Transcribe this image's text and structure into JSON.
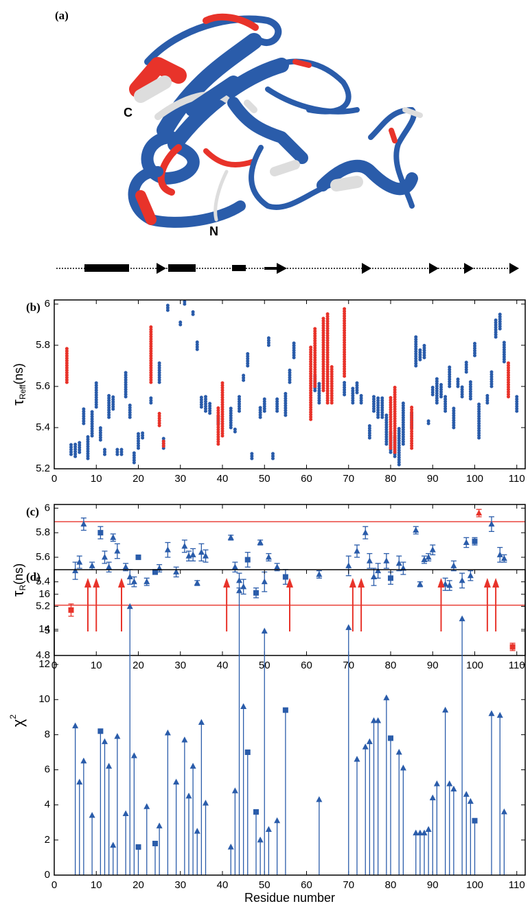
{
  "figure": {
    "panel_label": "(a)",
    "c_label": "C",
    "n_label": "N"
  },
  "chart_data": [
    {
      "type": "range",
      "panel_label": "(b)",
      "y_label": {
        "symbol": "τ",
        "subscript": "Reff",
        "unit": "(ns)"
      },
      "xlim": [
        0,
        112
      ],
      "ylim": [
        5.2,
        6.02
      ],
      "xticks": [
        0,
        10,
        20,
        30,
        40,
        50,
        60,
        70,
        80,
        90,
        100,
        110
      ],
      "yticks": [
        5.2,
        5.4,
        5.6,
        5.8,
        6
      ],
      "series": [
        {
          "color": "#2a5caa",
          "x": [
            4,
            5,
            6,
            7,
            8,
            9,
            10,
            11,
            12,
            13,
            14,
            15,
            16,
            17,
            18,
            19,
            20,
            21,
            23,
            25,
            26,
            27,
            30,
            31,
            33,
            34,
            35,
            36,
            37,
            39,
            42,
            43,
            44,
            45,
            46,
            47,
            49,
            50,
            51,
            52,
            53,
            55,
            56,
            57,
            62,
            63,
            69,
            71,
            72,
            73,
            75,
            76,
            77,
            78,
            79,
            80,
            81,
            82,
            83,
            85,
            86,
            87,
            88,
            89,
            90,
            91,
            92,
            93,
            94,
            95,
            96,
            97,
            98,
            99,
            100,
            101,
            103,
            104,
            105,
            106,
            107,
            110
          ],
          "low": [
            5.27,
            5.26,
            5.28,
            5.42,
            5.25,
            5.36,
            5.5,
            5.34,
            5.27,
            5.45,
            5.49,
            5.27,
            5.27,
            5.55,
            5.45,
            5.23,
            5.3,
            5.35,
            5.52,
            5.62,
            5.3,
            5.97,
            5.9,
            6.0,
            5.95,
            5.78,
            5.5,
            5.48,
            5.47,
            5.42,
            5.4,
            5.38,
            5.48,
            5.63,
            5.7,
            5.25,
            5.45,
            5.48,
            5.8,
            5.25,
            5.48,
            5.46,
            5.62,
            5.74,
            5.58,
            5.52,
            5.56,
            5.52,
            5.57,
            5.52,
            5.35,
            5.48,
            5.45,
            5.45,
            5.32,
            5.28,
            5.26,
            5.22,
            5.32,
            5.4,
            5.7,
            5.73,
            5.74,
            5.42,
            5.56,
            5.52,
            5.55,
            5.48,
            5.6,
            5.4,
            5.6,
            5.55,
            5.67,
            5.54,
            5.75,
            5.35,
            5.52,
            5.6,
            5.84,
            5.88,
            5.72,
            5.48
          ],
          "high": [
            5.32,
            5.33,
            5.33,
            5.5,
            5.36,
            5.48,
            5.62,
            5.4,
            5.3,
            5.56,
            5.55,
            5.3,
            5.3,
            5.67,
            5.52,
            5.28,
            5.38,
            5.38,
            5.55,
            5.72,
            5.35,
            6.0,
            5.92,
            6.02,
            5.97,
            5.82,
            5.55,
            5.56,
            5.52,
            5.46,
            5.5,
            5.4,
            5.56,
            5.66,
            5.76,
            5.28,
            5.5,
            5.55,
            5.84,
            5.28,
            5.55,
            5.57,
            5.68,
            5.82,
            5.66,
            5.62,
            5.62,
            5.6,
            5.62,
            5.56,
            5.42,
            5.56,
            5.55,
            5.55,
            5.47,
            5.38,
            5.36,
            5.4,
            5.52,
            5.48,
            5.85,
            5.78,
            5.8,
            5.44,
            5.6,
            5.64,
            5.62,
            5.56,
            5.7,
            5.5,
            5.64,
            5.6,
            5.72,
            5.63,
            5.82,
            5.52,
            5.56,
            5.68,
            5.93,
            5.96,
            5.82,
            5.56
          ]
        },
        {
          "color": "#e8332a",
          "x": [
            3,
            23,
            25,
            26,
            39,
            40,
            61,
            62,
            64,
            65,
            66,
            69,
            80,
            81,
            85,
            108
          ],
          "low": [
            5.62,
            5.62,
            5.41,
            5.31,
            5.32,
            5.36,
            5.44,
            5.6,
            5.58,
            5.52,
            5.52,
            5.65,
            5.3,
            5.28,
            5.3,
            5.55
          ],
          "high": [
            5.79,
            5.89,
            5.47,
            5.34,
            5.5,
            5.62,
            5.8,
            5.89,
            5.94,
            5.96,
            5.7,
            5.98,
            5.55,
            5.6,
            5.5,
            5.72
          ]
        }
      ]
    },
    {
      "type": "errorbar",
      "panel_label": "(c)",
      "y_label": {
        "symbol": "τ",
        "subscript": "R",
        "unit": "(ns)"
      },
      "xlim": [
        0,
        112
      ],
      "ylim": [
        4.8,
        6.03
      ],
      "xticks": [
        0,
        10,
        20,
        30,
        40,
        50,
        60,
        70,
        80,
        90,
        100,
        110
      ],
      "yticks": [
        4.8,
        5,
        5.2,
        5.4,
        5.6,
        5.8,
        6
      ],
      "hlines": {
        "color": "#e8332a",
        "values": [
          5.89,
          5.21
        ]
      },
      "series": [
        {
          "color": "#2a5caa",
          "marker": "triangle",
          "x": [
            5,
            6,
            7,
            9,
            12,
            13,
            14,
            15,
            17,
            18,
            19,
            22,
            25,
            27,
            29,
            31,
            32,
            33,
            34,
            35,
            36,
            42,
            43,
            44,
            45,
            49,
            50,
            51,
            53,
            63,
            70,
            72,
            74,
            75,
            76,
            77,
            79,
            82,
            83,
            86,
            87,
            88,
            89,
            90,
            93,
            94,
            95,
            97,
            98,
            99,
            104,
            106,
            107
          ],
          "values": [
            5.49,
            5.56,
            5.87,
            5.53,
            5.6,
            5.52,
            5.76,
            5.65,
            5.52,
            5.44,
            5.4,
            5.4,
            5.51,
            5.66,
            5.48,
            5.69,
            5.61,
            5.62,
            5.39,
            5.64,
            5.61,
            5.76,
            5.52,
            5.41,
            5.36,
            5.72,
            5.4,
            5.6,
            5.52,
            5.46,
            5.53,
            5.65,
            5.8,
            5.57,
            5.44,
            5.49,
            5.57,
            5.55,
            5.51,
            5.82,
            5.38,
            5.58,
            5.6,
            5.66,
            5.38,
            5.37,
            5.53,
            5.41,
            5.72,
            5.45,
            5.87,
            5.62,
            5.59
          ],
          "errors": [
            0.07,
            0.05,
            0.05,
            0.03,
            0.05,
            0.04,
            0.03,
            0.06,
            0.03,
            0.06,
            0.04,
            0.03,
            0.03,
            0.06,
            0.04,
            0.05,
            0.04,
            0.05,
            0.02,
            0.07,
            0.05,
            0.02,
            0.04,
            0.06,
            0.06,
            0.02,
            0.08,
            0.03,
            0.03,
            0.03,
            0.08,
            0.05,
            0.05,
            0.06,
            0.07,
            0.06,
            0.06,
            0.06,
            0.05,
            0.03,
            0.02,
            0.03,
            0.03,
            0.04,
            0.05,
            0.04,
            0.04,
            0.06,
            0.04,
            0.04,
            0.06,
            0.06,
            0.03
          ]
        },
        {
          "color": "#2a5caa",
          "marker": "square",
          "x": [
            11,
            20,
            24,
            46,
            48,
            55,
            80,
            100
          ],
          "values": [
            5.8,
            5.6,
            5.48,
            5.58,
            5.31,
            5.44,
            5.43,
            5.73
          ],
          "errors": [
            0.05,
            0.01,
            0.02,
            0.06,
            0.04,
            0.06,
            0.05,
            0.03
          ]
        },
        {
          "color": "#e8332a",
          "marker": "square",
          "x": [
            4,
            109
          ],
          "values": [
            5.17,
            4.87
          ],
          "errors": [
            0.05,
            0.03
          ]
        },
        {
          "color": "#e8332a",
          "marker": "triangle",
          "x": [
            101
          ],
          "values": [
            5.96
          ],
          "errors": [
            0.03
          ]
        }
      ]
    },
    {
      "type": "stem",
      "panel_label": "(d)",
      "y_label": {
        "symbol": "χ",
        "superscript": "2"
      },
      "x_label": "Residue number",
      "xlim": [
        0,
        112
      ],
      "ylim": [
        0,
        17.4
      ],
      "xticks": [
        0,
        10,
        20,
        30,
        40,
        50,
        60,
        70,
        80,
        90,
        100,
        110
      ],
      "yticks": [
        0,
        2,
        4,
        6,
        8,
        10,
        12,
        14,
        16
      ],
      "arrows": {
        "color": "#e8332a",
        "x": [
          8,
          10,
          16,
          41,
          56,
          71,
          73,
          92,
          103,
          105
        ]
      },
      "series": [
        {
          "color": "#2a5caa",
          "marker": "triangle",
          "x": [
            5,
            6,
            7,
            9,
            12,
            13,
            14,
            15,
            17,
            18,
            19,
            22,
            25,
            27,
            29,
            31,
            32,
            33,
            34,
            35,
            36,
            42,
            43,
            44,
            45,
            49,
            50,
            51,
            53,
            63,
            70,
            72,
            74,
            75,
            76,
            77,
            79,
            82,
            83,
            86,
            87,
            88,
            89,
            90,
            91,
            93,
            94,
            95,
            97,
            98,
            99,
            104,
            106,
            107
          ],
          "values": [
            8.5,
            5.3,
            6.5,
            3.4,
            7.6,
            6.2,
            1.7,
            7.9,
            3.5,
            15.3,
            6.8,
            3.9,
            2.8,
            8.1,
            5.3,
            7.7,
            4.5,
            6.2,
            2.5,
            8.7,
            4.1,
            1.6,
            4.8,
            16.2,
            9.6,
            2.0,
            13.9,
            2.6,
            3.1,
            4.3,
            14.1,
            6.6,
            7.3,
            7.6,
            8.8,
            8.8,
            10.1,
            7.0,
            6.1,
            2.4,
            2.4,
            2.4,
            2.6,
            4.4,
            5.2,
            9.4,
            5.2,
            4.9,
            14.6,
            4.6,
            4.2,
            9.2,
            9.1,
            3.6
          ]
        },
        {
          "color": "#2a5caa",
          "marker": "square",
          "x": [
            11,
            20,
            24,
            46,
            48,
            55,
            80,
            100
          ],
          "values": [
            8.2,
            1.6,
            1.8,
            7.0,
            3.6,
            9.4,
            7.8,
            3.1
          ]
        }
      ]
    }
  ]
}
